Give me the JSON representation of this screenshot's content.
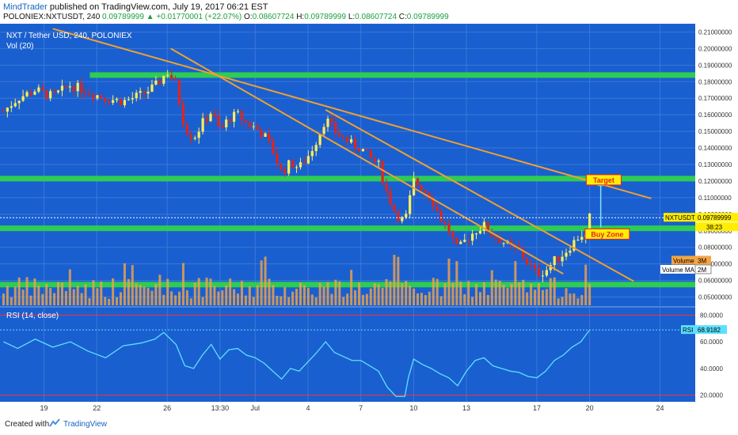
{
  "header": {
    "author": "MindTrader",
    "published": "published on TradingView.com, July 19, 2017 06:21 EST",
    "symbol": "POLONIEX:NXTUSDT, 240",
    "last": "0.09789999",
    "change": "+0.01770001 (+22.07%)",
    "o_label": "O:",
    "o": "0.08607724",
    "h_label": "H:",
    "h": "0.09789999",
    "l_label": "L:",
    "l": "0.08607724",
    "c_label": "C:",
    "c": "0.09789999"
  },
  "legend": {
    "title": "NXT / Tether USD, 240, POLONIEX",
    "vol": "Vol (20)",
    "rsi": "RSI (14, close)"
  },
  "footer": {
    "created": "Created with",
    "brand": "TradingView"
  },
  "colors": {
    "background": "#1a5fcf",
    "zone": "#2ecc52",
    "trendline": "#f0a030",
    "bull": "#ffee58",
    "bear": "#e2231a",
    "volume": "#f5a445",
    "rsi": "#5ce0ff",
    "rsi_band": "#ff3333",
    "badge_yellow": "#ffee00",
    "badge_red": "#e82020"
  },
  "chart_data": [
    {
      "type": "candlestick",
      "title": "NXT / Tether USD, 240, POLONIEX",
      "y_ticks": [
        "0.21000000",
        "0.20000000",
        "0.19000000",
        "0.18000000",
        "0.17000000",
        "0.16000000",
        "0.15000000",
        "0.14000000",
        "0.13000000",
        "0.12000000",
        "0.11000000",
        "0.10000000",
        "0.09000000",
        "0.08000000",
        "0.07000000",
        "0.06000000",
        "0.05000000"
      ],
      "ylim": [
        0.045,
        0.215
      ],
      "x_ticks": [
        "19",
        "22",
        "26",
        "13:30",
        "Jul",
        "4",
        "7",
        "10",
        "13",
        "17",
        "20",
        "24"
      ],
      "x_tick_days": [
        -12,
        -9,
        -5,
        -2,
        0,
        3,
        6,
        9,
        12,
        16,
        19,
        23
      ],
      "xlim": [
        -14.5,
        25
      ],
      "series_close": [
        [
          -14.3,
          0.162
        ],
        [
          -13.5,
          0.17
        ],
        [
          -12.5,
          0.175
        ],
        [
          -11.5,
          0.171
        ],
        [
          -10.5,
          0.178
        ],
        [
          -9.5,
          0.174
        ],
        [
          -8.5,
          0.17
        ],
        [
          -7.5,
          0.168
        ],
        [
          -6.5,
          0.172
        ],
        [
          -5.7,
          0.177
        ],
        [
          -5.0,
          0.186
        ],
        [
          -4.5,
          0.178
        ],
        [
          -4.0,
          0.152
        ],
        [
          -3.5,
          0.146
        ],
        [
          -3.0,
          0.155
        ],
        [
          -2.5,
          0.162
        ],
        [
          -2.0,
          0.15
        ],
        [
          -1.5,
          0.158
        ],
        [
          -1.0,
          0.16
        ],
        [
          -0.5,
          0.155
        ],
        [
          0.0,
          0.152
        ],
        [
          0.5,
          0.148
        ],
        [
          1.0,
          0.138
        ],
        [
          1.5,
          0.125
        ],
        [
          2.0,
          0.131
        ],
        [
          2.5,
          0.128
        ],
        [
          3.0,
          0.135
        ],
        [
          3.5,
          0.145
        ],
        [
          4.0,
          0.158
        ],
        [
          4.5,
          0.15
        ],
        [
          5.0,
          0.146
        ],
        [
          5.5,
          0.142
        ],
        [
          6.0,
          0.14
        ],
        [
          6.5,
          0.134
        ],
        [
          7.0,
          0.13
        ],
        [
          7.5,
          0.112
        ],
        [
          8.0,
          0.1
        ],
        [
          8.5,
          0.095
        ],
        [
          9.0,
          0.12
        ],
        [
          9.5,
          0.116
        ],
        [
          10.0,
          0.11
        ],
        [
          10.5,
          0.098
        ],
        [
          11.0,
          0.09
        ],
        [
          11.5,
          0.078
        ],
        [
          12.0,
          0.085
        ],
        [
          12.5,
          0.09
        ],
        [
          13.0,
          0.093
        ],
        [
          13.5,
          0.087
        ],
        [
          14.0,
          0.084
        ],
        [
          14.5,
          0.08
        ],
        [
          15.0,
          0.078
        ],
        [
          15.5,
          0.07
        ],
        [
          16.0,
          0.064
        ],
        [
          16.5,
          0.066
        ],
        [
          17.0,
          0.072
        ],
        [
          17.5,
          0.076
        ],
        [
          18.0,
          0.082
        ],
        [
          18.5,
          0.088
        ],
        [
          18.8,
          0.0861
        ],
        [
          19.0,
          0.0979
        ]
      ],
      "horizontal_zones": [
        0.184,
        0.1215,
        0.0915,
        0.0575
      ],
      "trendlines": [
        [
          [
            -11.5,
            0.212
          ],
          [
            22.5,
            0.1095
          ]
        ],
        [
          [
            4.0,
            0.163
          ],
          [
            21.5,
            0.0595
          ]
        ],
        [
          [
            -4.8,
            0.2
          ],
          [
            17.5,
            0.064
          ]
        ]
      ],
      "annotations": [
        {
          "text": "Target",
          "price": 0.1205,
          "day": 19.8
        },
        {
          "text": "Buy Zone",
          "price": 0.0878,
          "day": 20.0
        }
      ],
      "price_labels": [
        {
          "text": "NXTUSDT",
          "value": "0.09789999"
        },
        {
          "text": "",
          "value": "38:23"
        }
      ],
      "volume_labels": [
        {
          "name": "Volume",
          "value": "3M"
        },
        {
          "name": "Volume MA",
          "value": "2M"
        }
      ]
    },
    {
      "type": "line",
      "title": "RSI (14, close)",
      "y_ticks": [
        "80.0000",
        "60.0000",
        "40.0000",
        "20.0000"
      ],
      "ylim": [
        15,
        85
      ],
      "bands": [
        80,
        20
      ],
      "last_value": "68.9182",
      "series": [
        [
          -14.3,
          60
        ],
        [
          -13.5,
          55
        ],
        [
          -12.5,
          62
        ],
        [
          -11.5,
          56
        ],
        [
          -10.5,
          60
        ],
        [
          -9.5,
          53
        ],
        [
          -8.5,
          48
        ],
        [
          -7.5,
          57
        ],
        [
          -6.5,
          59
        ],
        [
          -5.7,
          62
        ],
        [
          -5.2,
          67
        ],
        [
          -4.5,
          58
        ],
        [
          -4.0,
          42
        ],
        [
          -3.5,
          40
        ],
        [
          -3.0,
          50
        ],
        [
          -2.5,
          58
        ],
        [
          -2.0,
          47
        ],
        [
          -1.5,
          54
        ],
        [
          -1.0,
          55
        ],
        [
          -0.5,
          50
        ],
        [
          0.0,
          48
        ],
        [
          0.5,
          44
        ],
        [
          1.0,
          38
        ],
        [
          1.5,
          32
        ],
        [
          2.0,
          40
        ],
        [
          2.5,
          38
        ],
        [
          3.0,
          45
        ],
        [
          3.5,
          52
        ],
        [
          4.0,
          60
        ],
        [
          4.5,
          52
        ],
        [
          5.0,
          49
        ],
        [
          5.5,
          46
        ],
        [
          6.0,
          46
        ],
        [
          6.5,
          42
        ],
        [
          7.0,
          38
        ],
        [
          7.5,
          26
        ],
        [
          8.0,
          19
        ],
        [
          8.5,
          19
        ],
        [
          8.7,
          33
        ],
        [
          9.0,
          47
        ],
        [
          9.5,
          43
        ],
        [
          10.0,
          40
        ],
        [
          10.5,
          36
        ],
        [
          11.0,
          33
        ],
        [
          11.5,
          27
        ],
        [
          12.0,
          38
        ],
        [
          12.5,
          46
        ],
        [
          13.0,
          48
        ],
        [
          13.5,
          42
        ],
        [
          14.0,
          40
        ],
        [
          14.5,
          38
        ],
        [
          15.0,
          37
        ],
        [
          15.5,
          34
        ],
        [
          16.0,
          33
        ],
        [
          16.5,
          38
        ],
        [
          17.0,
          46
        ],
        [
          17.5,
          50
        ],
        [
          18.0,
          56
        ],
        [
          18.5,
          60
        ],
        [
          19.0,
          68.9
        ]
      ]
    }
  ]
}
